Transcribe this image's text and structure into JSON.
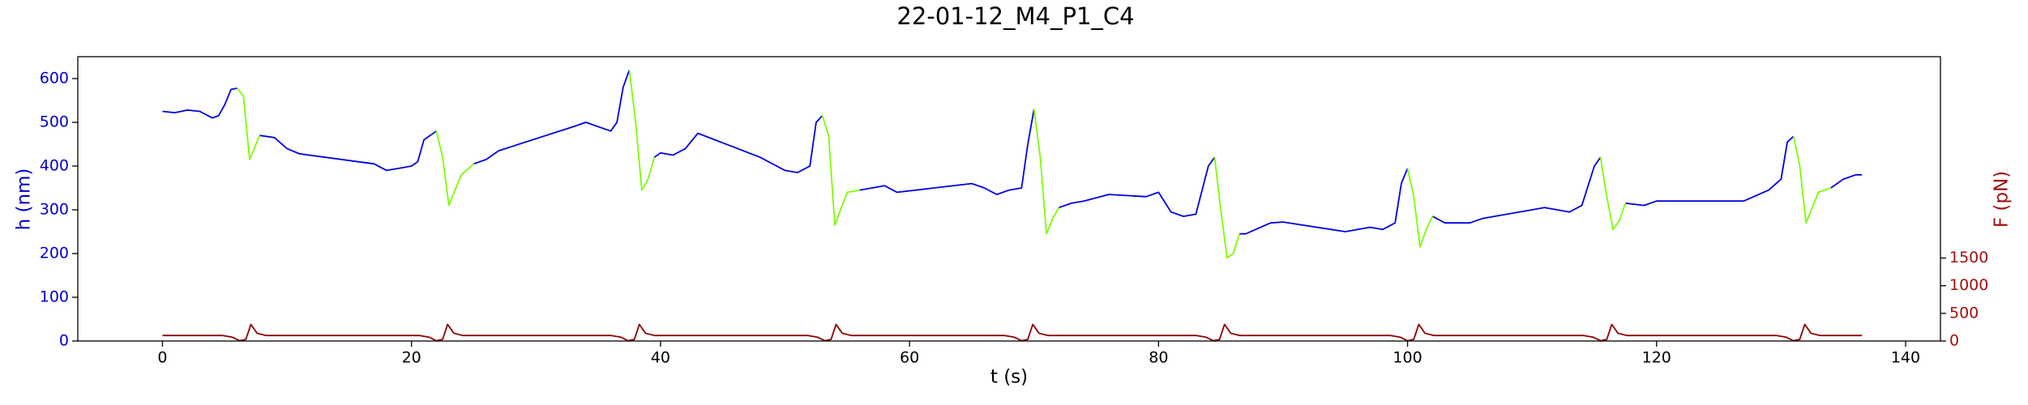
{
  "chart_data": {
    "type": "line",
    "title": "22-01-12_M4_P1_C4",
    "xlabel": "t (s)",
    "ylabel": "h (nm)",
    "y2label": "F (pN)",
    "xlim": [
      -6.8,
      142.8
    ],
    "xticks": [
      0,
      20,
      40,
      60,
      80,
      100,
      120,
      140
    ],
    "ylim": [
      0,
      650
    ],
    "yticks": [
      0,
      100,
      200,
      300,
      400,
      500,
      600
    ],
    "y2lim": [
      0,
      5140
    ],
    "y2ticks": [
      0,
      500,
      1000,
      1500
    ],
    "ycolor": "#0000cc",
    "y2color": "#a01010",
    "series": [
      {
        "color": "#0000e0",
        "x": [
          0,
          1,
          2,
          3,
          4,
          4.5,
          5,
          5.5,
          6,
          null,
          7.8,
          9,
          10,
          11,
          17,
          18,
          19,
          20,
          20.5,
          21,
          22,
          null,
          25,
          26,
          27,
          33,
          34,
          36,
          36.5,
          37,
          37.5,
          null,
          39.5,
          40,
          41,
          42,
          43,
          48,
          50,
          51,
          52,
          52.5,
          53,
          null,
          56,
          57,
          58,
          59,
          65,
          66,
          67,
          68,
          69,
          69.5,
          70,
          null,
          72,
          73,
          74,
          76,
          79,
          80,
          81,
          82,
          83,
          84,
          84.5,
          null,
          86.5,
          87,
          89,
          90,
          95,
          96,
          97,
          98,
          99,
          99.5,
          100,
          null,
          102,
          103,
          105,
          106,
          110,
          111,
          112,
          113,
          114,
          115,
          115.5,
          null,
          117.5,
          119,
          120,
          127,
          129,
          130,
          130.5,
          131,
          null,
          134,
          135,
          136,
          136.5
        ],
        "values": [
          525,
          522,
          528,
          525,
          510,
          515,
          540,
          575,
          578,
          null,
          470,
          465,
          440,
          428,
          405,
          390,
          395,
          400,
          410,
          460,
          480,
          null,
          405,
          415,
          435,
          490,
          500,
          480,
          500,
          580,
          620,
          null,
          420,
          430,
          425,
          440,
          475,
          420,
          390,
          385,
          400,
          500,
          515,
          null,
          345,
          350,
          355,
          340,
          360,
          350,
          335,
          345,
          350,
          450,
          530,
          null,
          305,
          315,
          320,
          335,
          330,
          340,
          295,
          285,
          290,
          400,
          420,
          null,
          245,
          245,
          270,
          272,
          250,
          255,
          260,
          255,
          270,
          360,
          395,
          null,
          285,
          270,
          270,
          280,
          300,
          305,
          300,
          295,
          310,
          400,
          420,
          null,
          315,
          310,
          320,
          320,
          345,
          370,
          455,
          468,
          null,
          350,
          370,
          380,
          380
        ]
      },
      {
        "color": "#7cfc00",
        "x": [
          6,
          6.5,
          7,
          7.8,
          null,
          22,
          22.5,
          23,
          24,
          25,
          null,
          37.5,
          38,
          38.5,
          39,
          39.5,
          null,
          53,
          53.5,
          54,
          55,
          56,
          null,
          70,
          70.5,
          71,
          71.5,
          72,
          null,
          84.5,
          85,
          85.5,
          86,
          86.5,
          null,
          100,
          100.5,
          101,
          101.5,
          102,
          null,
          115.5,
          116,
          116.5,
          117,
          117.5,
          null,
          131,
          131.5,
          132,
          133,
          134
        ],
        "values": [
          578,
          560,
          415,
          470,
          null,
          480,
          420,
          310,
          380,
          405,
          null,
          620,
          500,
          345,
          370,
          420,
          null,
          515,
          470,
          265,
          340,
          345,
          null,
          530,
          420,
          245,
          280,
          305,
          null,
          420,
          300,
          190,
          200,
          245,
          null,
          395,
          330,
          215,
          255,
          285,
          null,
          420,
          330,
          255,
          275,
          315,
          null,
          468,
          400,
          270,
          340,
          350
        ]
      },
      {
        "color": "#8b0000",
        "axis": "y2",
        "x": [
          0,
          4.8,
          5.6,
          6.2,
          6.7,
          7.1,
          7.6,
          8.3,
          20.6,
          21.4,
          22,
          22.5,
          22.9,
          23.4,
          24.1,
          36,
          36.8,
          37.4,
          37.9,
          38.3,
          38.8,
          39.5,
          51.8,
          52.6,
          53.2,
          53.7,
          54.1,
          54.6,
          55.3,
          67.6,
          68.4,
          69,
          69.5,
          69.9,
          70.4,
          71.1,
          83,
          83.8,
          84.4,
          84.9,
          85.3,
          85.8,
          86.5,
          98.6,
          99.4,
          100,
          100.5,
          100.9,
          101.4,
          102.1,
          114.1,
          114.9,
          115.5,
          116,
          116.4,
          116.9,
          117.6,
          129.6,
          130.4,
          131,
          131.5,
          131.9,
          132.4,
          133.1,
          136.5
        ],
        "values": [
          100,
          100,
          70,
          5,
          30,
          300,
          140,
          100,
          100,
          70,
          5,
          30,
          300,
          140,
          100,
          100,
          70,
          5,
          30,
          300,
          140,
          100,
          100,
          70,
          5,
          30,
          300,
          140,
          100,
          100,
          70,
          5,
          30,
          300,
          140,
          100,
          100,
          70,
          5,
          30,
          300,
          140,
          100,
          100,
          70,
          5,
          30,
          300,
          140,
          100,
          100,
          70,
          5,
          30,
          300,
          140,
          100,
          100,
          70,
          5,
          30,
          300,
          140,
          100,
          100
        ]
      }
    ]
  }
}
